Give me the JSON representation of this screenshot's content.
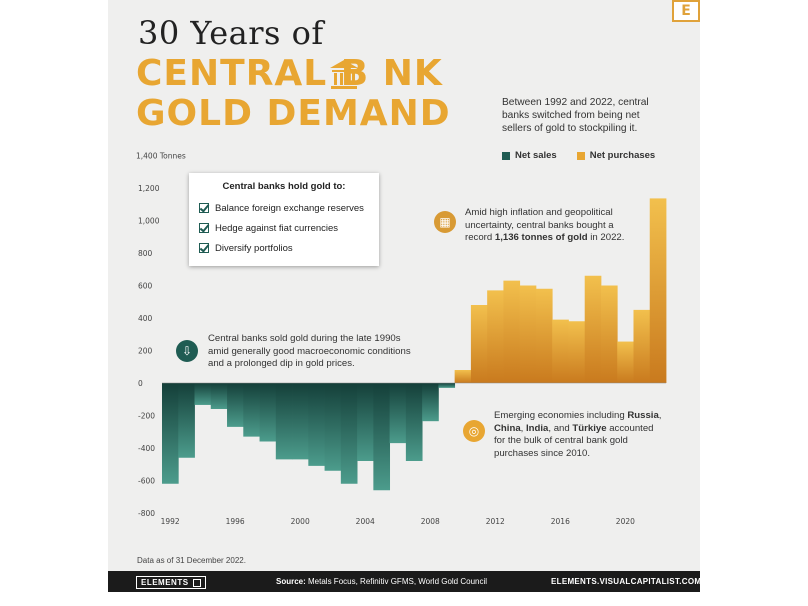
{
  "brand": {
    "badge_letter": "E",
    "accent": "#e8a632",
    "teal": "#1f5c53"
  },
  "title": {
    "top": "30 Years of",
    "main_line1": "CENTRAL B NK",
    "main_line2": "GOLD DEMAND"
  },
  "intro": "Between 1992 and 2022, central banks switched from being net sellers of gold to stockpiling it.",
  "legend": {
    "net_sales": "Net sales",
    "net_purchases": "Net purchases"
  },
  "reasons_box": {
    "heading": "Central banks hold gold to:",
    "items": [
      "Balance foreign exchange reserves",
      "Hedge against fiat currencies",
      "Diversify portfolios"
    ]
  },
  "annotations": {
    "record_pre": "Amid high inflation and geopolitical uncertainty, central banks bought a record ",
    "record_bold": "1,136 tonnes of gold",
    "record_post": " in 2022.",
    "sold_1990s": "Central banks sold gold during the late 1990s amid generally good macroeconomic conditions and a prolonged dip in gold prices.",
    "emerging_pre": "Emerging economies including ",
    "emerging_b1": "Russia",
    "emerging_sep1": ", ",
    "emerging_b2": "China",
    "emerging_sep2": ", ",
    "emerging_b3": "India",
    "emerging_sep3": ", and ",
    "emerging_b4": "Türkiye",
    "emerging_post": " accounted for the bulk of central bank gold purchases since 2010."
  },
  "footnote": "Data as of 31 December 2022.",
  "footer": {
    "logo": "ELEMENTS",
    "source_label": "Source:",
    "source_text": " Metals Focus, Refinitiv GFMS, World Gold Council",
    "url": "ELEMENTS.VISUALCAPITALIST.COM"
  },
  "chart_data": {
    "type": "bar",
    "unit_label": "1,400 Tonnes",
    "x": [
      1992,
      1993,
      1994,
      1995,
      1996,
      1997,
      1998,
      1999,
      2000,
      2001,
      2002,
      2003,
      2004,
      2005,
      2006,
      2007,
      2008,
      2009,
      2010,
      2011,
      2012,
      2013,
      2014,
      2015,
      2016,
      2017,
      2018,
      2019,
      2020,
      2021,
      2022
    ],
    "values": [
      -620,
      -460,
      -135,
      -160,
      -270,
      -330,
      -360,
      -470,
      -470,
      -510,
      -540,
      -620,
      -480,
      -660,
      -370,
      -480,
      -235,
      -30,
      80,
      480,
      570,
      630,
      600,
      580,
      390,
      380,
      660,
      600,
      255,
      450,
      1136
    ],
    "ylim": [
      -800,
      1400
    ],
    "yticks": [
      -800,
      -600,
      -400,
      -200,
      0,
      200,
      400,
      600,
      800,
      1000,
      1200
    ],
    "xticks": [
      "1992",
      "1996",
      "2000",
      "2004",
      "2008",
      "2012",
      "2016",
      "2020"
    ],
    "series": [
      {
        "name": "Net sales",
        "color": "#1f5c53"
      },
      {
        "name": "Net purchases",
        "color": "#e8a632"
      }
    ],
    "grid": false
  }
}
